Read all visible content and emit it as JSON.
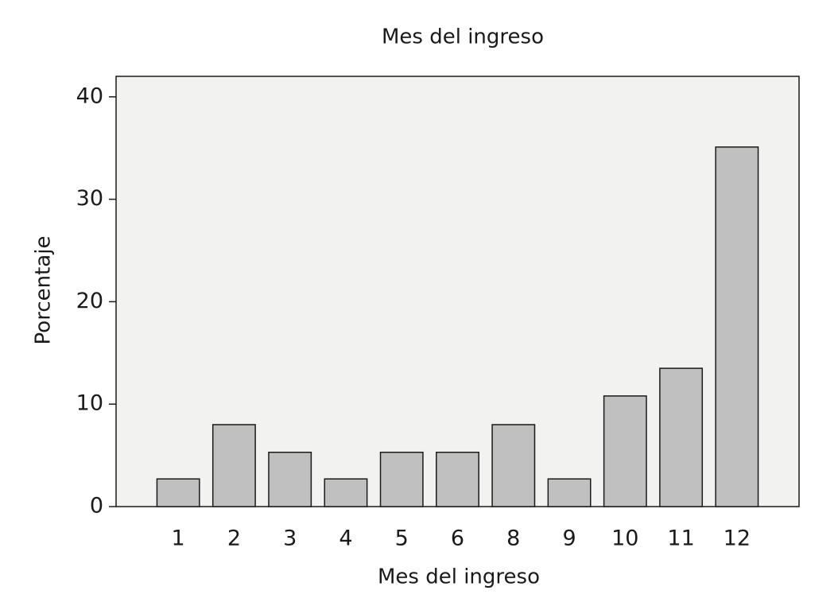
{
  "chart_data": {
    "type": "bar",
    "title": "Mes del ingreso",
    "x_label": "Mes del ingreso",
    "y_label": "Porcentaje",
    "categories": [
      "1",
      "2",
      "3",
      "4",
      "5",
      "6",
      "8",
      "9",
      "10",
      "11",
      "12"
    ],
    "values": [
      2.7,
      8.0,
      5.3,
      2.7,
      5.3,
      5.3,
      8.0,
      2.7,
      10.8,
      13.5,
      35.1
    ],
    "color": "#c0c0c0",
    "background": "#f2f2f0",
    "ylim": [
      0,
      42
    ],
    "yticks": [
      0,
      10,
      20,
      30,
      40
    ],
    "grid": false
  }
}
